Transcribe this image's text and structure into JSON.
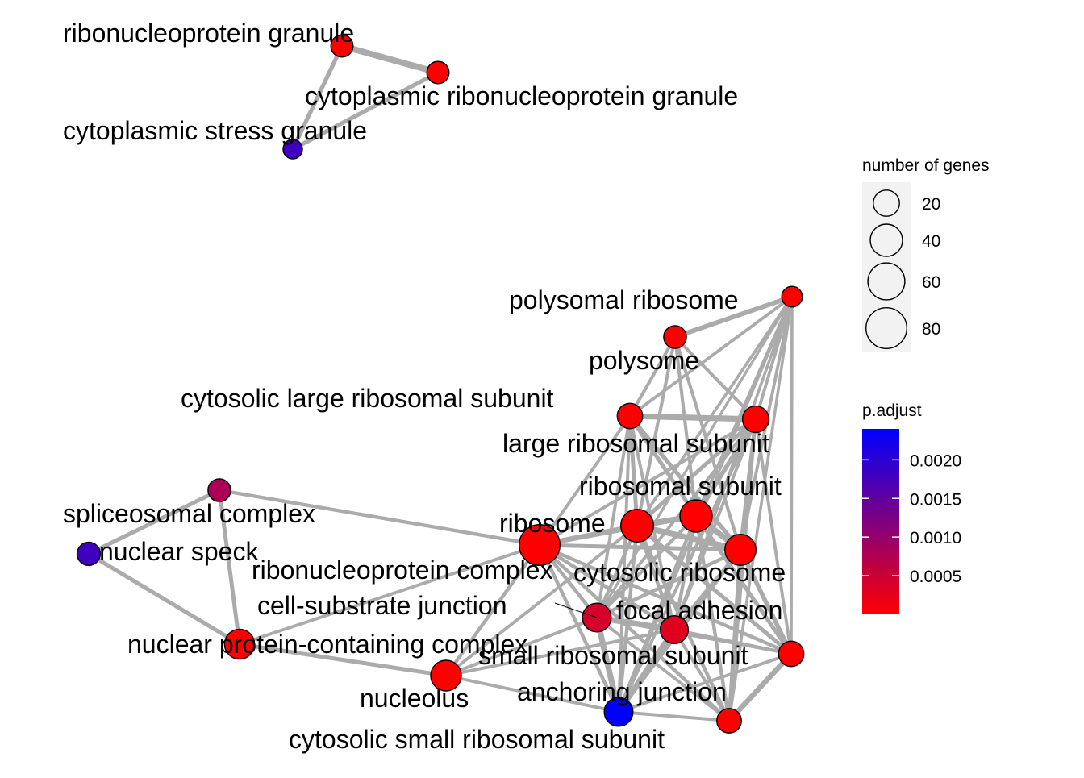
{
  "network": {
    "nodes": [
      {
        "id": "rg",
        "label": "ribonucleoprotein granule",
        "genes": 11,
        "p_adjust": 0.0
      },
      {
        "id": "crg",
        "label": "cytoplasmic ribonucleoprotein granule",
        "genes": 11,
        "p_adjust": 0.0
      },
      {
        "id": "csg",
        "label": "cytoplasmic stress granule",
        "genes": 6,
        "p_adjust": 0.0018
      },
      {
        "id": "polyrib",
        "label": "polysomal ribosome",
        "genes": 8,
        "p_adjust": 0.0
      },
      {
        "id": "polysome",
        "label": "polysome",
        "genes": 12,
        "p_adjust": 0.0
      },
      {
        "id": "clrs",
        "label": "cytosolic large ribosomal subunit",
        "genes": 18,
        "p_adjust": 0.0
      },
      {
        "id": "lrs",
        "label": "large ribosomal subunit",
        "genes": 21,
        "p_adjust": 0.0
      },
      {
        "id": "rs",
        "label": "ribosomal subunit",
        "genes": 40,
        "p_adjust": 0.0
      },
      {
        "id": "spl",
        "label": "spliceosomal complex",
        "genes": 12,
        "p_adjust": 0.0008
      },
      {
        "id": "ribosome",
        "label": "ribosome",
        "genes": 42,
        "p_adjust": 0.0
      },
      {
        "id": "ns",
        "label": "nuclear speck",
        "genes": 13,
        "p_adjust": 0.0018
      },
      {
        "id": "rnpc",
        "label": "ribonucleoprotein complex",
        "genes": 80,
        "p_adjust": 0.0
      },
      {
        "id": "cr",
        "label": "cytosolic ribosome",
        "genes": 36,
        "p_adjust": 0.0
      },
      {
        "id": "csj",
        "label": "cell-substrate junction",
        "genes": 28,
        "p_adjust": 0.0004
      },
      {
        "id": "fa",
        "label": "focal adhesion",
        "genes": 25,
        "p_adjust": 0.0003
      },
      {
        "id": "npcc",
        "label": "nuclear protein-containing complex",
        "genes": 32,
        "p_adjust": 0.0
      },
      {
        "id": "srs",
        "label": "small ribosomal subunit",
        "genes": 18,
        "p_adjust": 0.0
      },
      {
        "id": "nucleolus",
        "label": "nucleolus",
        "genes": 34,
        "p_adjust": 0.0
      },
      {
        "id": "aj",
        "label": "anchoring junction",
        "genes": 28,
        "p_adjust": 0.0024
      },
      {
        "id": "cssrs",
        "label": "cytosolic small ribosomal subunit",
        "genes": 16,
        "p_adjust": 0.0
      }
    ],
    "edges": [
      {
        "source": "rg",
        "target": "crg",
        "weight": 1.0
      },
      {
        "source": "rg",
        "target": "csg",
        "weight": 0.55
      },
      {
        "source": "crg",
        "target": "csg",
        "weight": 0.55
      },
      {
        "source": "polyrib",
        "target": "polysome",
        "weight": 0.65
      },
      {
        "source": "polyrib",
        "target": "clrs",
        "weight": 0.3
      },
      {
        "source": "polyrib",
        "target": "lrs",
        "weight": 0.3
      },
      {
        "source": "polyrib",
        "target": "rs",
        "weight": 0.3
      },
      {
        "source": "polyrib",
        "target": "ribosome",
        "weight": 0.25
      },
      {
        "source": "polyrib",
        "target": "cr",
        "weight": 0.3
      },
      {
        "source": "polyrib",
        "target": "fa",
        "weight": 0.25
      },
      {
        "source": "polyrib",
        "target": "srs",
        "weight": 0.25
      },
      {
        "source": "polyrib",
        "target": "cssrs",
        "weight": 0.25
      },
      {
        "source": "polyrib",
        "target": "aj",
        "weight": 0.2
      },
      {
        "source": "polyrib",
        "target": "csj",
        "weight": 0.2
      },
      {
        "source": "polysome",
        "target": "clrs",
        "weight": 0.35
      },
      {
        "source": "polysome",
        "target": "lrs",
        "weight": 0.35
      },
      {
        "source": "polysome",
        "target": "rs",
        "weight": 0.35
      },
      {
        "source": "polysome",
        "target": "ribosome",
        "weight": 0.35
      },
      {
        "source": "polysome",
        "target": "cr",
        "weight": 0.35
      },
      {
        "source": "clrs",
        "target": "lrs",
        "weight": 0.9
      },
      {
        "source": "clrs",
        "target": "rs",
        "weight": 0.5
      },
      {
        "source": "clrs",
        "target": "ribosome",
        "weight": 0.5
      },
      {
        "source": "clrs",
        "target": "cr",
        "weight": 0.5
      },
      {
        "source": "clrs",
        "target": "rnpc",
        "weight": 0.3
      },
      {
        "source": "clrs",
        "target": "fa",
        "weight": 0.3
      },
      {
        "source": "clrs",
        "target": "csj",
        "weight": 0.3
      },
      {
        "source": "clrs",
        "target": "aj",
        "weight": 0.3
      },
      {
        "source": "lrs",
        "target": "rs",
        "weight": 0.6
      },
      {
        "source": "lrs",
        "target": "ribosome",
        "weight": 0.5
      },
      {
        "source": "lrs",
        "target": "cr",
        "weight": 0.5
      },
      {
        "source": "lrs",
        "target": "rnpc",
        "weight": 0.3
      },
      {
        "source": "lrs",
        "target": "fa",
        "weight": 0.3
      },
      {
        "source": "lrs",
        "target": "srs",
        "weight": 0.3
      },
      {
        "source": "lrs",
        "target": "csj",
        "weight": 0.3
      },
      {
        "source": "lrs",
        "target": "aj",
        "weight": 0.3
      },
      {
        "source": "lrs",
        "target": "cssrs",
        "weight": 0.3
      },
      {
        "source": "rs",
        "target": "ribosome",
        "weight": 0.9
      },
      {
        "source": "rs",
        "target": "cr",
        "weight": 0.9
      },
      {
        "source": "rs",
        "target": "rnpc",
        "weight": 0.6
      },
      {
        "source": "rs",
        "target": "srs",
        "weight": 0.5
      },
      {
        "source": "rs",
        "target": "cssrs",
        "weight": 0.4
      },
      {
        "source": "rs",
        "target": "fa",
        "weight": 0.4
      },
      {
        "source": "rs",
        "target": "csj",
        "weight": 0.4
      },
      {
        "source": "rs",
        "target": "aj",
        "weight": 0.4
      },
      {
        "source": "ribosome",
        "target": "cr",
        "weight": 0.9
      },
      {
        "source": "ribosome",
        "target": "rnpc",
        "weight": 0.7
      },
      {
        "source": "ribosome",
        "target": "srs",
        "weight": 0.5
      },
      {
        "source": "ribosome",
        "target": "cssrs",
        "weight": 0.4
      },
      {
        "source": "ribosome",
        "target": "fa",
        "weight": 0.4
      },
      {
        "source": "ribosome",
        "target": "csj",
        "weight": 0.4
      },
      {
        "source": "ribosome",
        "target": "aj",
        "weight": 0.4
      },
      {
        "source": "ribosome",
        "target": "nucleolus",
        "weight": 0.3
      },
      {
        "source": "cr",
        "target": "rnpc",
        "weight": 0.5
      },
      {
        "source": "cr",
        "target": "srs",
        "weight": 0.6
      },
      {
        "source": "cr",
        "target": "cssrs",
        "weight": 0.5
      },
      {
        "source": "cr",
        "target": "fa",
        "weight": 0.4
      },
      {
        "source": "cr",
        "target": "csj",
        "weight": 0.4
      },
      {
        "source": "cr",
        "target": "aj",
        "weight": 0.4
      },
      {
        "source": "rnpc",
        "target": "spl",
        "weight": 0.4
      },
      {
        "source": "rnpc",
        "target": "csj",
        "weight": 0.4
      },
      {
        "source": "rnpc",
        "target": "fa",
        "weight": 0.4
      },
      {
        "source": "rnpc",
        "target": "nucleolus",
        "weight": 0.4
      },
      {
        "source": "rnpc",
        "target": "aj",
        "weight": 0.4
      },
      {
        "source": "rnpc",
        "target": "srs",
        "weight": 0.4
      },
      {
        "source": "rnpc",
        "target": "cssrs",
        "weight": 0.4
      },
      {
        "source": "rnpc",
        "target": "npcc",
        "weight": 0.3
      },
      {
        "source": "csj",
        "target": "fa",
        "weight": 0.9
      },
      {
        "source": "csj",
        "target": "aj",
        "weight": 0.9
      },
      {
        "source": "csj",
        "target": "srs",
        "weight": 0.3
      },
      {
        "source": "csj",
        "target": "cssrs",
        "weight": 0.3
      },
      {
        "source": "csj",
        "target": "nucleolus",
        "weight": 0.3
      },
      {
        "source": "fa",
        "target": "aj",
        "weight": 0.9
      },
      {
        "source": "fa",
        "target": "srs",
        "weight": 0.3
      },
      {
        "source": "fa",
        "target": "cssrs",
        "weight": 0.3
      },
      {
        "source": "srs",
        "target": "cssrs",
        "weight": 0.8
      },
      {
        "source": "srs",
        "target": "aj",
        "weight": 0.3
      },
      {
        "source": "aj",
        "target": "cssrs",
        "weight": 0.3
      },
      {
        "source": "aj",
        "target": "nucleolus",
        "weight": 0.3
      },
      {
        "source": "spl",
        "target": "ns",
        "weight": 0.5
      },
      {
        "source": "spl",
        "target": "npcc",
        "weight": 0.5
      },
      {
        "source": "ns",
        "target": "npcc",
        "weight": 0.5
      },
      {
        "source": "npcc",
        "target": "nucleolus",
        "weight": 0.5
      },
      {
        "source": "nucleolus",
        "target": "fa",
        "weight": 0.3
      }
    ]
  },
  "legend": {
    "size_title": "number of genes",
    "size_entries": [
      {
        "label": "20",
        "value": 20
      },
      {
        "label": "40",
        "value": 40
      },
      {
        "label": "60",
        "value": 60
      },
      {
        "label": "80",
        "value": 80
      }
    ],
    "color_title": "p.adjust",
    "color_ticks": [
      {
        "label": "0.0020",
        "value": 0.002
      },
      {
        "label": "0.0015",
        "value": 0.0015
      },
      {
        "label": "0.0010",
        "value": 0.001
      },
      {
        "label": "0.0005",
        "value": 0.0005
      }
    ],
    "color_range": [
      0.0,
      0.0024
    ],
    "color_low": "#ff0000",
    "color_high": "#0000ff"
  }
}
